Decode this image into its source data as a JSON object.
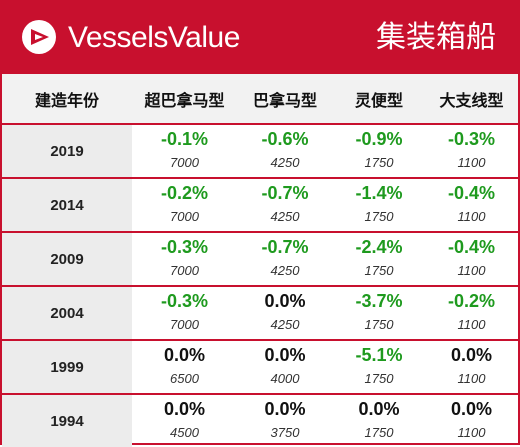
{
  "header": {
    "brand": "VesselsValue",
    "category": "集装箱船"
  },
  "table": {
    "columns": [
      "建造年份",
      "超巴拿马型",
      "巴拿马型",
      "灵便型",
      "大支线型"
    ],
    "rows": [
      {
        "year": "2019",
        "cells": [
          {
            "change": "-0.1%",
            "value": "7000"
          },
          {
            "change": "-0.6%",
            "value": "4250"
          },
          {
            "change": "-0.9%",
            "value": "1750"
          },
          {
            "change": "-0.3%",
            "value": "1100"
          }
        ]
      },
      {
        "year": "2014",
        "cells": [
          {
            "change": "-0.2%",
            "value": "7000"
          },
          {
            "change": "-0.7%",
            "value": "4250"
          },
          {
            "change": "-1.4%",
            "value": "1750"
          },
          {
            "change": "-0.4%",
            "value": "1100"
          }
        ]
      },
      {
        "year": "2009",
        "cells": [
          {
            "change": "-0.3%",
            "value": "7000"
          },
          {
            "change": "-0.7%",
            "value": "4250"
          },
          {
            "change": "-2.4%",
            "value": "1750"
          },
          {
            "change": "-0.4%",
            "value": "1100"
          }
        ]
      },
      {
        "year": "2004",
        "cells": [
          {
            "change": "-0.3%",
            "value": "7000"
          },
          {
            "change": "0.0%",
            "value": "4250"
          },
          {
            "change": "-3.7%",
            "value": "1750"
          },
          {
            "change": "-0.2%",
            "value": "1100"
          }
        ]
      },
      {
        "year": "1999",
        "cells": [
          {
            "change": "0.0%",
            "value": "6500"
          },
          {
            "change": "0.0%",
            "value": "4000"
          },
          {
            "change": "-5.1%",
            "value": "1750"
          },
          {
            "change": "0.0%",
            "value": "1100"
          }
        ]
      },
      {
        "year": "1994",
        "cells": [
          {
            "change": "0.0%",
            "value": "4500"
          },
          {
            "change": "0.0%",
            "value": "3750"
          },
          {
            "change": "0.0%",
            "value": "1750"
          },
          {
            "change": "0.0%",
            "value": "1100"
          }
        ]
      }
    ]
  },
  "colors": {
    "brand_red": "#c8102e",
    "negative_green": "#1e9a1e",
    "zero_black": "#111111"
  }
}
